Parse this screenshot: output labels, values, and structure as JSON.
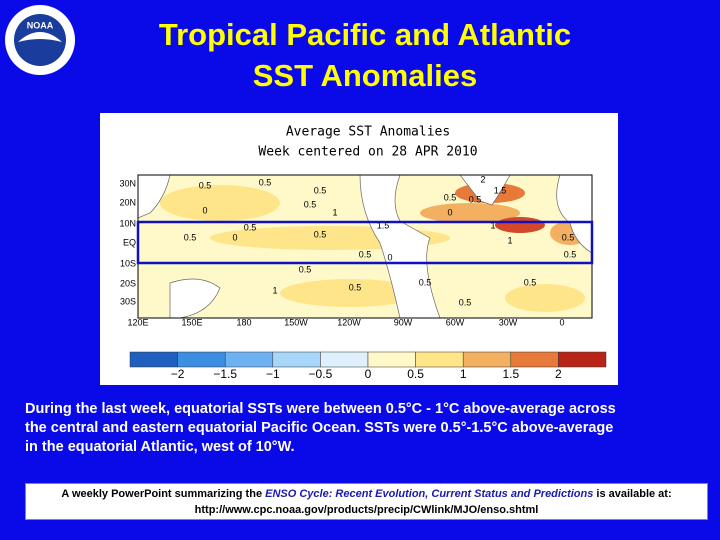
{
  "header": {
    "logo_text": "NOAA",
    "title_lines": [
      "Tropical Pacific and Atlantic",
      "SST Anomalies"
    ]
  },
  "map": {
    "title_lines": [
      "Average SST Anomalies",
      "Week centered on 28 APR 2010"
    ],
    "lat_labels": [
      "30N",
      "20N",
      "10N",
      "EQ",
      "10S",
      "20S",
      "30S"
    ],
    "lon_labels": [
      "120E",
      "150E",
      "180",
      "150W",
      "120W",
      "90W",
      "60W",
      "30W",
      "0"
    ],
    "contour_labels": [
      "0.5",
      "0.5",
      "0",
      "0.5",
      "0",
      "0.5",
      "0.5",
      "1",
      "1.5",
      "2",
      "1.5",
      "0.5",
      "0",
      "0.5",
      "0.5",
      "1",
      "0.5",
      "0.5",
      "0.5",
      "0",
      "0.5",
      "1",
      "0.5",
      "0.5",
      "1",
      "0.5",
      "0.5",
      "0.5"
    ],
    "colorbar_labels": [
      "−2",
      "−1.5",
      "−1",
      "−0.5",
      "0",
      "0.5",
      "1",
      "1.5",
      "2"
    ]
  },
  "body": {
    "lines": [
      "During the last week, equatorial SSTs were between 0.5°C - 1°C above-average across",
      "the central and eastern equatorial Pacific Ocean.  SSTs were 0.5°-1.5°C above-average",
      "in the equatorial Atlantic, west of 10°W."
    ]
  },
  "footer": {
    "before": "A weekly PowerPoint summarizing the ",
    "link_text": "ENSO Cycle: Recent Evolution, Current Status and Predictions",
    "after": " is available at:",
    "url": "http://www.cpc.noaa.gov/products/precip/CWlink/MJO/enso.shtml"
  }
}
